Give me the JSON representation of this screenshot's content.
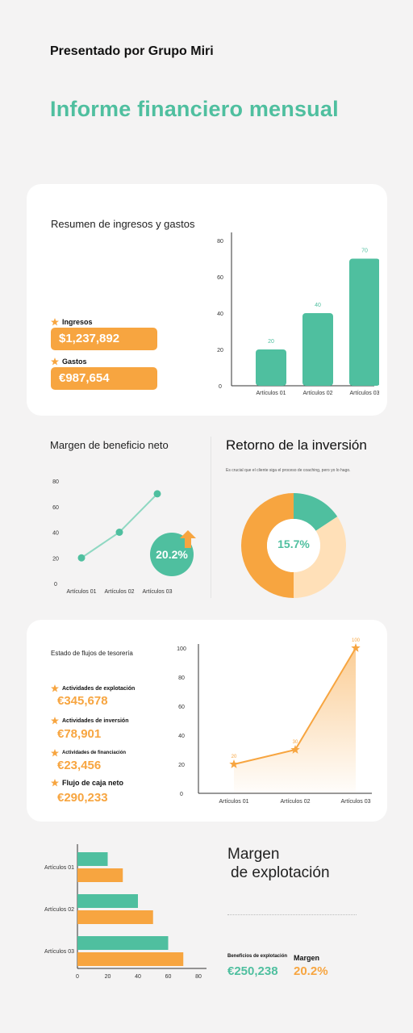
{
  "header": {
    "presenter": "Presentado por Grupo Miri",
    "title": "Informe financiero mensual"
  },
  "colors": {
    "green": "#4fbf9f",
    "orange": "#f7a540",
    "light_orange": "#ffe0b8"
  },
  "income_summary": {
    "title": "Resumen de ingresos y gastos",
    "ingresos_label": "Ingresos",
    "ingresos_value": "$1,237,892",
    "gastos_label": "Gastos",
    "gastos_value": "€987,654"
  },
  "net_margin": {
    "title": "Margen de beneficio neto",
    "badge": "20.2%"
  },
  "roi": {
    "title": "Retorno de la inversión",
    "subtitle": "Es crucial que el cliente siga el proceso de coaching, pero yo lo hago.",
    "center": "15.7%"
  },
  "cash_flow": {
    "title": "Estado de flujos de tesorería",
    "items": [
      {
        "label": "Actividades de explotación",
        "value": "€345,678"
      },
      {
        "label": "Actividades de inversión",
        "value": "€78,901"
      },
      {
        "label": "Actividades de financiación",
        "value": "€23,456"
      },
      {
        "label": "Flujo de caja neto",
        "value": "€290,233"
      }
    ]
  },
  "operating": {
    "title_line1": "Margen",
    "title_line2": "de explotación",
    "profit_label": "Beneficios de explotación",
    "profit_value": "€250,238",
    "margin_label": "Margen",
    "margin_value": "20.2%"
  },
  "chart_data": [
    {
      "id": "bar1",
      "type": "bar",
      "categories": [
        "Artículos 01",
        "Artículos 02",
        "Artículos 03"
      ],
      "values": [
        20,
        40,
        70
      ],
      "ylim": [
        0,
        80
      ],
      "yticks": [
        0,
        20,
        40,
        60,
        80
      ],
      "color": "#4fbf9f",
      "data_labels": true
    },
    {
      "id": "line1",
      "type": "line",
      "categories": [
        "Artículos 01",
        "Artículos 02",
        "Artículos 03"
      ],
      "values": [
        20,
        40,
        70
      ],
      "ylim": [
        0,
        80
      ],
      "yticks": [
        0,
        20,
        40,
        60,
        80
      ],
      "color": "#4fbf9f"
    },
    {
      "id": "donut1",
      "type": "pie",
      "values": [
        15.7,
        34.3,
        50
      ],
      "colors": [
        "#4fbf9f",
        "#ffe0b8",
        "#f7a540"
      ]
    },
    {
      "id": "area1",
      "type": "area",
      "categories": [
        "Artículos 01",
        "Artículos 02",
        "Artículos 03"
      ],
      "values": [
        20,
        30,
        100
      ],
      "ylim": [
        0,
        100
      ],
      "yticks": [
        0,
        20,
        40,
        60,
        80,
        100
      ],
      "color": "#f7a540",
      "data_labels": true
    },
    {
      "id": "hbar1",
      "type": "bar",
      "orientation": "horizontal",
      "categories": [
        "Artículos 01",
        "Artículos 02",
        "Artículos 03"
      ],
      "series": [
        {
          "values": [
            20,
            40,
            60
          ],
          "color": "#4fbf9f"
        },
        {
          "values": [
            30,
            50,
            70
          ],
          "color": "#f7a540"
        }
      ],
      "xlim": [
        0,
        80
      ],
      "xticks": [
        0,
        20,
        40,
        60,
        80
      ]
    }
  ]
}
